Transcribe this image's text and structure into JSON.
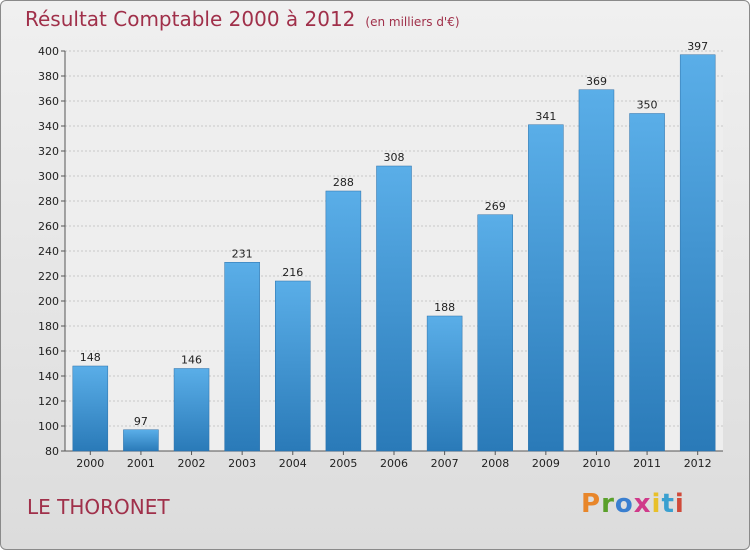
{
  "chart_data": {
    "type": "bar",
    "title": "Résultat Comptable 2000 à 2012",
    "subtitle": "(en milliers d'€)",
    "categories": [
      "2000",
      "2001",
      "2002",
      "2003",
      "2004",
      "2005",
      "2006",
      "2007",
      "2008",
      "2009",
      "2010",
      "2011",
      "2012"
    ],
    "values": [
      148,
      97,
      146,
      231,
      216,
      288,
      308,
      188,
      269,
      341,
      369,
      350,
      397
    ],
    "ylim": [
      80,
      400
    ],
    "yticks": [
      80,
      100,
      120,
      140,
      160,
      180,
      200,
      220,
      240,
      260,
      280,
      300,
      320,
      340,
      360,
      380,
      400
    ],
    "grid": true,
    "xlabel": "",
    "ylabel": ""
  },
  "footer": {
    "commune": "LE THORONET",
    "logo_text": "Proxiti"
  },
  "colors": {
    "bar_top": "#5aaee8",
    "bar_bottom": "#2a7ab8",
    "title": "#a0304a",
    "logo": [
      "#e8862a",
      "#5aa02a",
      "#3a7fd0",
      "#d03a8a",
      "#e8c02a",
      "#3aa0d0",
      "#d04a3a"
    ]
  }
}
